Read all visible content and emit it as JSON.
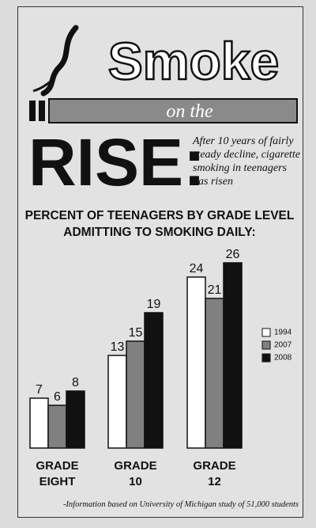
{
  "header": {
    "title_1": "Smoke",
    "title_2": "on the",
    "title_3": "RISE:",
    "subtitle": "After 10 years of fairly steady decline, cigarette smoking in teenagers has risen"
  },
  "chart_data": {
    "type": "bar",
    "title": "PERCENT OF TEENAGERS BY GRADE LEVEL ADMITTING TO SMOKING DAILY:",
    "categories": [
      "GRADE EIGHT",
      "GRADE 10",
      "GRADE 12"
    ],
    "series": [
      {
        "name": "1994",
        "color": "#ffffff",
        "values": [
          7,
          13,
          24
        ]
      },
      {
        "name": "2007",
        "color": "#808080",
        "values": [
          6,
          15,
          21
        ]
      },
      {
        "name": "2008",
        "color": "#111111",
        "values": [
          8,
          19,
          26
        ]
      }
    ],
    "legend": "right"
  },
  "footnote": "-Information based on University of Michigan study of 51,000 students"
}
